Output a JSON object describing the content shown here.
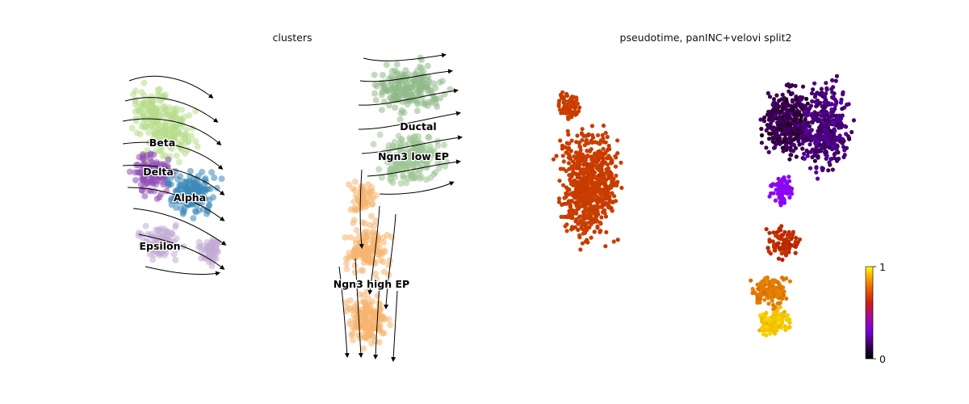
{
  "chart_data": [
    {
      "type": "scatter",
      "title": "clusters",
      "overlay": "velocity streamlines",
      "clusters": [
        {
          "name": "Beta",
          "color": "#b7dc8a"
        },
        {
          "name": "Delta",
          "color": "#8f4fb4"
        },
        {
          "name": "Alpha",
          "color": "#3d88b8"
        },
        {
          "name": "Epsilon",
          "color": "#c2abd6"
        },
        {
          "name": "Ductal",
          "color": "#90ba89"
        },
        {
          "name": "Ngn3 low EP",
          "color": "#9cc593"
        },
        {
          "name": "Ngn3 high EP",
          "color": "#f5b56f"
        }
      ]
    },
    {
      "type": "scatter",
      "title": "pseudotime, panINC+velovi split2",
      "colormap": "gnuplot",
      "colorbar": {
        "min": 0,
        "max": 1,
        "ticks": [
          "1",
          "0"
        ]
      }
    }
  ]
}
